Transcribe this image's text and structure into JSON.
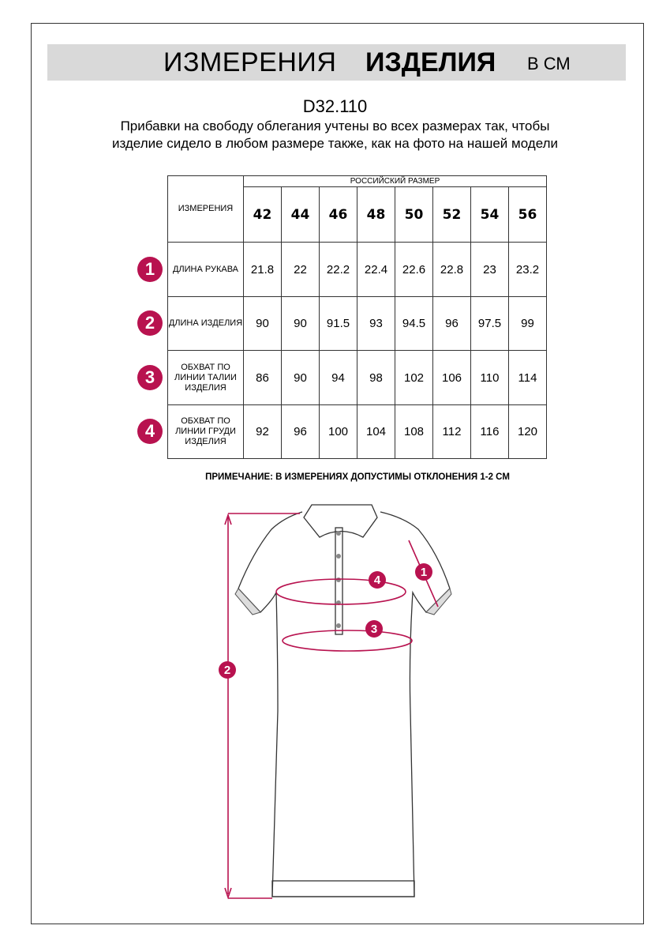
{
  "title": {
    "part1": "ИЗМЕРЕНИЯ",
    "part2": "ИЗДЕЛИЯ",
    "unit": "В СМ"
  },
  "product_code": "D32.110",
  "description": "Прибавки на свободу облегания учтены во всех размерах так, чтобы изделие сидело в любом размере также, как на фото на нашей модели",
  "table": {
    "measure_header": "ИЗМЕРЕНИЯ",
    "size_header": "РОССИЙСКИЙ РАЗМЕР",
    "sizes": [
      "42",
      "44",
      "46",
      "48",
      "50",
      "52",
      "54",
      "56"
    ],
    "rows": [
      {
        "num": "1",
        "label": "ДЛИНА РУКАВА",
        "values": [
          "21.8",
          "22",
          "22.2",
          "22.4",
          "22.6",
          "22.8",
          "23",
          "23.2"
        ]
      },
      {
        "num": "2",
        "label": "ДЛИНА ИЗДЕЛИЯ",
        "values": [
          "90",
          "90",
          "91.5",
          "93",
          "94.5",
          "96",
          "97.5",
          "99"
        ]
      },
      {
        "num": "3",
        "label": "ОБХВАТ ПО ЛИНИИ ТАЛИИ ИЗДЕЛИЯ",
        "values": [
          "86",
          "90",
          "94",
          "98",
          "102",
          "106",
          "110",
          "114"
        ]
      },
      {
        "num": "4",
        "label": "ОБХВАТ ПО ЛИНИИ ГРУДИ ИЗДЕЛИЯ",
        "values": [
          "92",
          "96",
          "100",
          "104",
          "108",
          "112",
          "116",
          "120"
        ]
      }
    ]
  },
  "note": "ПРИМЕЧАНИЕ: В ИЗМЕРЕНИЯХ ДОПУСТИМЫ ОТКЛОНЕНИЯ 1-2 СМ",
  "diagram_markers": [
    "1",
    "2",
    "3",
    "4"
  ],
  "accent_color": "#b8124f"
}
